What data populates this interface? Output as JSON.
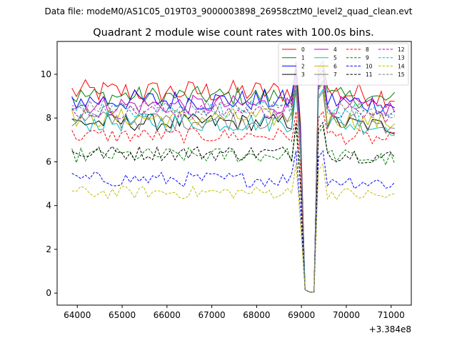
{
  "header": {
    "file_label": "Data file: modeM0/AS1C05_019T03_9000003898_26958cztM0_level2_quad_clean.evt"
  },
  "chart_data": {
    "type": "line",
    "title": "Quadrant 2 module wise count rates with 100.0s bins.",
    "xlabel": "",
    "ylabel": "",
    "x_offset_label": "+3.384e8",
    "xlim": [
      63550,
      71450
    ],
    "ylim": [
      -0.55,
      11.5
    ],
    "x_ticks": [
      64000,
      65000,
      66000,
      67000,
      68000,
      69000,
      70000,
      71000
    ],
    "x_tick_labels": [
      "64000",
      "65000",
      "66000",
      "67000",
      "68000",
      "69000",
      "70000",
      "71000"
    ],
    "y_ticks": [
      0,
      2,
      4,
      6,
      8,
      10
    ],
    "y_tick_labels": [
      "0",
      "2",
      "4",
      "6",
      "8",
      "10"
    ],
    "grid": false,
    "legend_position": "top-right",
    "x_start": 63880,
    "x_step": 100,
    "num_points": 73,
    "dip": {
      "start_index": 51,
      "values": [
        6.0,
        0.15,
        0.05,
        0.05,
        5.5
      ]
    },
    "series": [
      {
        "name": "0",
        "color": "#ff0000",
        "dash": "solid",
        "base": 9.2,
        "amp": 0.55,
        "peak": 10.6
      },
      {
        "name": "1",
        "color": "#008000",
        "dash": "solid",
        "base": 9.0,
        "amp": 0.45,
        "peak": 10.4
      },
      {
        "name": "2",
        "color": "#0000ff",
        "dash": "solid",
        "base": 8.8,
        "amp": 0.5,
        "peak": 10.2
      },
      {
        "name": "3",
        "color": "#000000",
        "dash": "solid",
        "base": 7.8,
        "amp": 0.4,
        "peak": 9.7
      },
      {
        "name": "4",
        "color": "#bf00bf",
        "dash": "solid",
        "base": 8.6,
        "amp": 0.45,
        "peak": 10.0
      },
      {
        "name": "5",
        "color": "#00bfbf",
        "dash": "solid",
        "base": 7.8,
        "amp": 0.45,
        "peak": 9.3
      },
      {
        "name": "6",
        "color": "#bfbf00",
        "dash": "solid",
        "base": 8.0,
        "amp": 0.45,
        "peak": 9.6
      },
      {
        "name": "7",
        "color": "#808080",
        "dash": "solid",
        "base": 7.9,
        "amp": 0.45,
        "peak": 9.2
      },
      {
        "name": "8",
        "color": "#ff0000",
        "dash": "dashed",
        "base": 7.2,
        "amp": 0.35,
        "peak": 8.3
      },
      {
        "name": "9",
        "color": "#008000",
        "dash": "dashed",
        "base": 6.3,
        "amp": 0.35,
        "peak": 7.6
      },
      {
        "name": "10",
        "color": "#0000ff",
        "dash": "dashed",
        "base": 5.2,
        "amp": 0.35,
        "peak": 6.5
      },
      {
        "name": "11",
        "color": "#000000",
        "dash": "dashed",
        "base": 6.4,
        "amp": 0.35,
        "peak": 7.8
      },
      {
        "name": "12",
        "color": "#bf00bf",
        "dash": "dashed",
        "base": 8.3,
        "amp": 0.35,
        "peak": 9.6
      },
      {
        "name": "13",
        "color": "#00bfbf",
        "dash": "dashed",
        "base": 8.4,
        "amp": 0.35,
        "peak": 9.6
      },
      {
        "name": "14",
        "color": "#bfbf00",
        "dash": "dashed",
        "base": 4.6,
        "amp": 0.3,
        "peak": 5.9
      },
      {
        "name": "15",
        "color": "#808080",
        "dash": "dashed",
        "base": 8.5,
        "amp": 0.35,
        "peak": 9.7
      }
    ]
  }
}
